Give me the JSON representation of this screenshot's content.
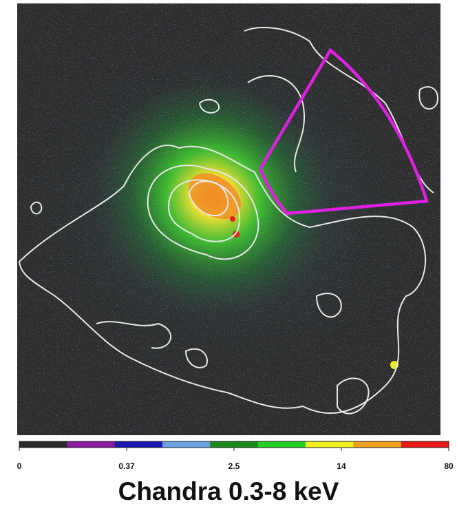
{
  "image": {
    "caption": "Chandra 0.3-8 keV"
  },
  "colorbar": {
    "ticks": [
      0,
      0.37,
      2.5,
      14,
      80
    ],
    "colors": [
      "#2b2b2b",
      "#8a1aa0",
      "#1a1ab0",
      "#6aa0e0",
      "#1a8a1a",
      "#22d022",
      "#f0f020",
      "#f0a020",
      "#e81818"
    ]
  }
}
